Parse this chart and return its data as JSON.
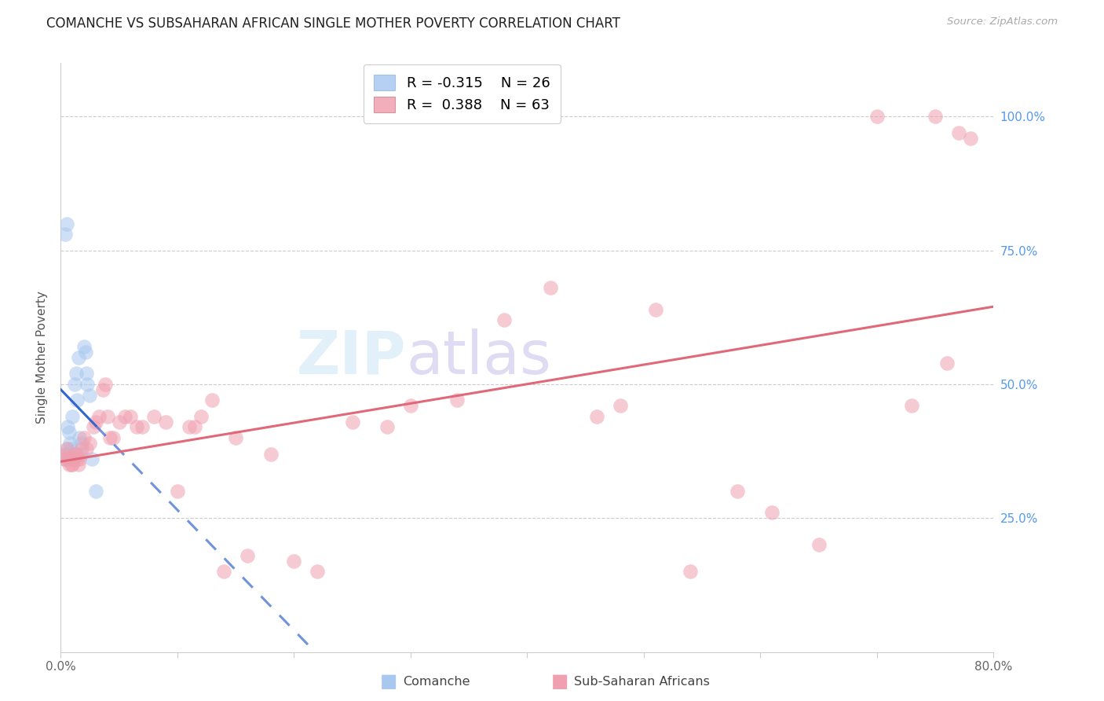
{
  "title": "COMANCHE VS SUBSAHARAN AFRICAN SINGLE MOTHER POVERTY CORRELATION CHART",
  "source": "Source: ZipAtlas.com",
  "ylabel": "Single Mother Poverty",
  "ytick_labels": [
    "100.0%",
    "75.0%",
    "50.0%",
    "25.0%"
  ],
  "ytick_values": [
    1.0,
    0.75,
    0.5,
    0.25
  ],
  "xlim": [
    0.0,
    0.8
  ],
  "ylim": [
    0.0,
    1.1
  ],
  "legend_label1": "Comanche",
  "legend_label2": "Sub-Saharan Africans",
  "legend_text1": "R = -0.315    N = 26",
  "legend_text2": "R =  0.388    N = 63",
  "blue_color": "#A8C8F0",
  "pink_color": "#F0A0B0",
  "trend_blue": "#3366CC",
  "trend_pink": "#E06878",
  "blue_scatter_x": [
    0.003,
    0.004,
    0.005,
    0.005,
    0.006,
    0.006,
    0.007,
    0.008,
    0.008,
    0.009,
    0.01,
    0.01,
    0.012,
    0.013,
    0.014,
    0.015,
    0.016,
    0.017,
    0.018,
    0.02,
    0.021,
    0.022,
    0.023,
    0.025,
    0.027,
    0.03
  ],
  "blue_scatter_y": [
    0.36,
    0.78,
    0.8,
    0.37,
    0.38,
    0.42,
    0.41,
    0.37,
    0.39,
    0.38,
    0.36,
    0.44,
    0.5,
    0.52,
    0.47,
    0.55,
    0.4,
    0.37,
    0.39,
    0.57,
    0.56,
    0.52,
    0.5,
    0.48,
    0.36,
    0.3
  ],
  "pink_scatter_x": [
    0.003,
    0.004,
    0.005,
    0.006,
    0.007,
    0.008,
    0.009,
    0.01,
    0.011,
    0.012,
    0.013,
    0.014,
    0.015,
    0.016,
    0.018,
    0.02,
    0.022,
    0.025,
    0.028,
    0.03,
    0.033,
    0.036,
    0.038,
    0.04,
    0.042,
    0.045,
    0.05,
    0.055,
    0.06,
    0.065,
    0.07,
    0.08,
    0.09,
    0.1,
    0.11,
    0.115,
    0.12,
    0.13,
    0.14,
    0.15,
    0.16,
    0.18,
    0.2,
    0.22,
    0.25,
    0.28,
    0.3,
    0.34,
    0.38,
    0.42,
    0.46,
    0.48,
    0.51,
    0.54,
    0.58,
    0.61,
    0.65,
    0.7,
    0.73,
    0.75,
    0.76,
    0.77,
    0.78
  ],
  "pink_scatter_y": [
    0.37,
    0.36,
    0.38,
    0.36,
    0.35,
    0.36,
    0.35,
    0.35,
    0.36,
    0.37,
    0.37,
    0.36,
    0.35,
    0.36,
    0.38,
    0.4,
    0.38,
    0.39,
    0.42,
    0.43,
    0.44,
    0.49,
    0.5,
    0.44,
    0.4,
    0.4,
    0.43,
    0.44,
    0.44,
    0.42,
    0.42,
    0.44,
    0.43,
    0.3,
    0.42,
    0.42,
    0.44,
    0.47,
    0.15,
    0.4,
    0.18,
    0.37,
    0.17,
    0.15,
    0.43,
    0.42,
    0.46,
    0.47,
    0.62,
    0.68,
    0.44,
    0.46,
    0.64,
    0.15,
    0.3,
    0.26,
    0.2,
    1.0,
    0.46,
    1.0,
    0.54,
    0.97,
    0.96
  ]
}
